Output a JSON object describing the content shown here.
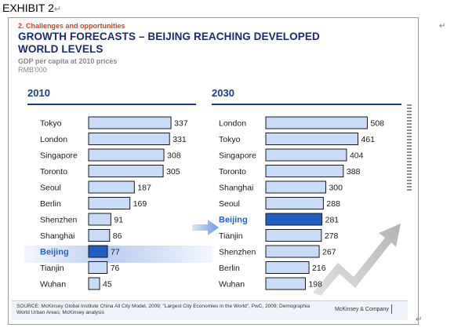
{
  "exhibit_label": "EXHIBIT 2",
  "paragraph_mark": "↵",
  "slide": {
    "overline": "2. Challenges and opportunities",
    "title": "GROWTH FORECASTS – BEIJING REACHING DEVELOPED WORLD LEVELS",
    "subtitle": "GDP per capita at 2010 prices",
    "unit": "RMB'000",
    "source": "SOURCE: McKinsey Global Institute China All City Model, 2009; \"Largest City Economies in the World\", PwC, 2009; Demographia World Urban Areas; McKinsey analysis",
    "brand": "McKinsey & Company"
  },
  "colors": {
    "bar_fill": "#c9dcf7",
    "bar_stroke": "#1a1a1a",
    "highlight_fill": "#1f5fc4",
    "highlight_text": "#2563c8",
    "section_title": "#1a3d8f",
    "title": "#1a2a6c",
    "overline": "#e0401a"
  },
  "chart_data": [
    {
      "type": "bar",
      "orientation": "horizontal",
      "title": "2010",
      "categories": [
        "Tokyo",
        "London",
        "Singapore",
        "Toronto",
        "Seoul",
        "Berlin",
        "Shenzhen",
        "Shanghai",
        "Beijing",
        "Tianjin",
        "Wuhan"
      ],
      "values": [
        337,
        331,
        308,
        305,
        187,
        169,
        91,
        86,
        77,
        76,
        45
      ],
      "highlight": "Beijing",
      "unit": "RMB'000",
      "xlim": [
        0,
        340
      ]
    },
    {
      "type": "bar",
      "orientation": "horizontal",
      "title": "2030",
      "categories": [
        "London",
        "Tokyo",
        "Singapore",
        "Toronto",
        "Shanghai",
        "Seoul",
        "Beijing",
        "Tianjin",
        "Shenzhen",
        "Berlin",
        "Wuhan"
      ],
      "values": [
        508,
        461,
        404,
        388,
        300,
        288,
        281,
        278,
        267,
        216,
        198
      ],
      "highlight": "Beijing",
      "unit": "RMB'000",
      "xlim": [
        0,
        510
      ]
    }
  ]
}
